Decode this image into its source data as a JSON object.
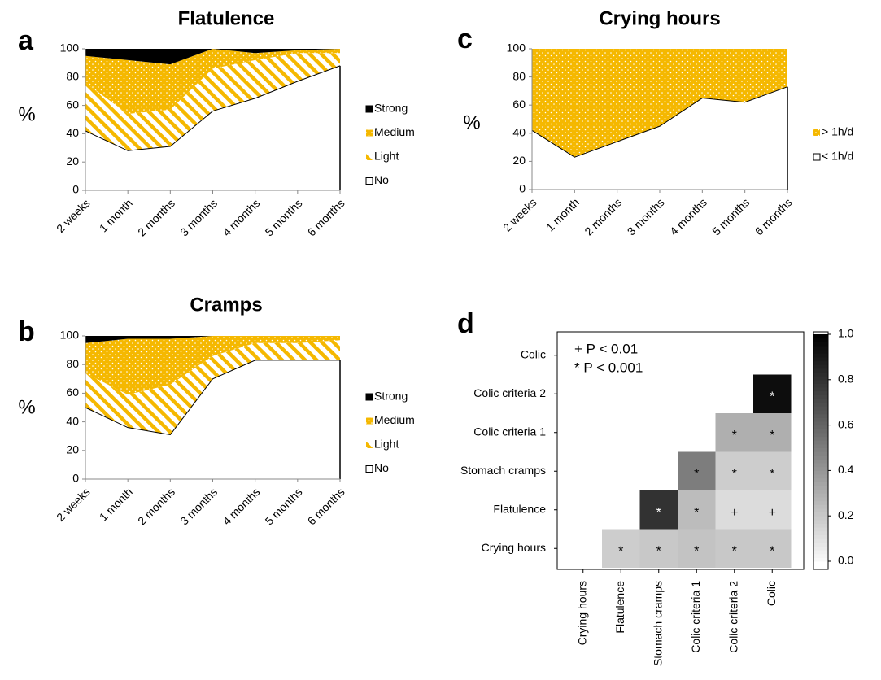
{
  "chart_data": [
    {
      "type": "area",
      "panel_label": "a",
      "title": "Flatulence",
      "y_label": "%",
      "categories": [
        "2 weeks",
        "1 month",
        "2 months",
        "3 months",
        "4 months",
        "5 months",
        "6 months"
      ],
      "series": [
        {
          "name": "No",
          "color": "#ffffff",
          "values": [
            42,
            28,
            31,
            56,
            65,
            77,
            88
          ]
        },
        {
          "name": "Light",
          "color": "#f5b800",
          "pattern": "stripes",
          "values": [
            34,
            26,
            26,
            30,
            27,
            20,
            9
          ]
        },
        {
          "name": "Medium",
          "color": "#f5b800",
          "pattern": "dots",
          "values": [
            19,
            38,
            32,
            14,
            5,
            2,
            3
          ]
        },
        {
          "name": "Strong",
          "color": "#000000",
          "values": [
            5,
            8,
            11,
            0,
            3,
            1,
            0
          ]
        }
      ],
      "ylim": [
        0,
        100
      ],
      "yticks": [
        0,
        20,
        40,
        60,
        80,
        100
      ]
    },
    {
      "type": "area",
      "panel_label": "b",
      "title": "Cramps",
      "y_label": "%",
      "categories": [
        "2 weeks",
        "1 month",
        "2 months",
        "3 months",
        "4 months",
        "5 months",
        "6 months"
      ],
      "series": [
        {
          "name": "No",
          "color": "#ffffff",
          "values": [
            50,
            36,
            31,
            70,
            83,
            83,
            83
          ]
        },
        {
          "name": "Light",
          "color": "#f5b800",
          "pattern": "stripes",
          "values": [
            24,
            23,
            35,
            16,
            12,
            12,
            14
          ]
        },
        {
          "name": "Medium",
          "color": "#f5b800",
          "pattern": "dots",
          "values": [
            21,
            39,
            32,
            14,
            5,
            5,
            3
          ]
        },
        {
          "name": "Strong",
          "color": "#000000",
          "values": [
            5,
            2,
            2,
            0,
            0,
            0,
            0
          ]
        }
      ],
      "ylim": [
        0,
        100
      ],
      "yticks": [
        0,
        20,
        40,
        60,
        80,
        100
      ]
    },
    {
      "type": "area",
      "panel_label": "c",
      "title": "Crying hours",
      "y_label": "%",
      "categories": [
        "2 weeks",
        "1 month",
        "2 months",
        "3 months",
        "4 months",
        "5 months",
        "6 months"
      ],
      "series": [
        {
          "name": "< 1h/d",
          "color": "#ffffff",
          "values": [
            42,
            23,
            34,
            45,
            65,
            62,
            73
          ]
        },
        {
          "name": "> 1h/d",
          "color": "#f5b800",
          "pattern": "dots",
          "values": [
            58,
            77,
            66,
            55,
            35,
            38,
            27
          ]
        }
      ],
      "ylim": [
        0,
        100
      ],
      "yticks": [
        0,
        20,
        40,
        60,
        80,
        100
      ]
    },
    {
      "type": "heatmap",
      "panel_label": "d",
      "x_categories": [
        "Crying hours",
        "Flatulence",
        "Stomach cramps",
        "Colic criteria 1",
        "Colic criteria 2",
        "Colic"
      ],
      "y_categories": [
        "Crying hours",
        "Flatulence",
        "Stomach cramps",
        "Colic criteria 1",
        "Colic criteria 2",
        "Colic"
      ],
      "values": [
        [
          null,
          0.18,
          0.2,
          0.22,
          0.2,
          0.2
        ],
        [
          null,
          null,
          0.8,
          0.25,
          0.12,
          0.12
        ],
        [
          null,
          null,
          null,
          0.5,
          0.18,
          0.18
        ],
        [
          null,
          null,
          null,
          null,
          0.3,
          0.3
        ],
        [
          null,
          null,
          null,
          null,
          null,
          0.95
        ],
        [
          null,
          null,
          null,
          null,
          null,
          null
        ]
      ],
      "cell_labels": [
        [
          null,
          "*",
          "*",
          "*",
          "*",
          "*"
        ],
        [
          null,
          null,
          "*",
          "*",
          "+",
          "+"
        ],
        [
          null,
          null,
          null,
          "*",
          "*",
          "*"
        ],
        [
          null,
          null,
          null,
          null,
          "*",
          "*"
        ],
        [
          null,
          null,
          null,
          null,
          null,
          "*"
        ],
        [
          null,
          null,
          null,
          null,
          null,
          null
        ]
      ],
      "annotations": [
        "+ P < 0.01",
        "* P < 0.001"
      ],
      "colorbar_lim": [
        0,
        1
      ],
      "colorbar_ticks": [
        {
          "value": 0,
          "label": "0.0"
        },
        0.2,
        0.4,
        0.6,
        0.8,
        {
          "value": 1,
          "label": "1.0"
        }
      ]
    }
  ]
}
